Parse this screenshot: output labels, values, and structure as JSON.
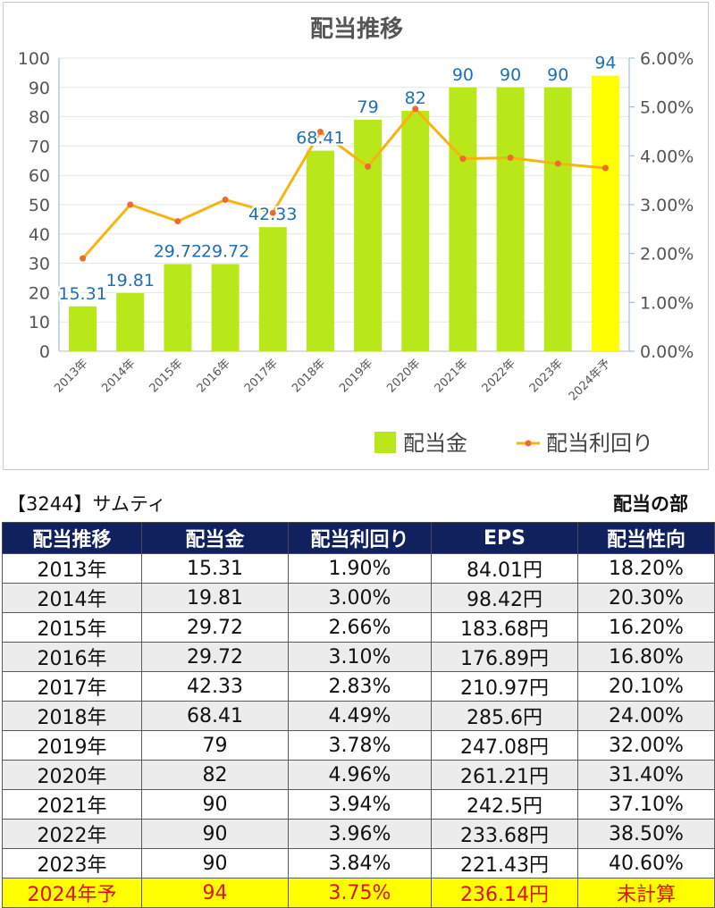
{
  "company_label": "【3244】サムティ",
  "section_label": "配当の部",
  "colors": {
    "bar": "#b8e81a",
    "bar_forecast": "#ffff00",
    "yield_line": "#f7b410",
    "yield_marker": "#ec6b2d",
    "data_label": "#1f6fb5",
    "table_header_bg": "#11215e",
    "forecast_row_bg": "#ffff00",
    "forecast_row_text": "#e01010"
  },
  "chart_data": {
    "type": "bar",
    "title": "配当推移",
    "categories": [
      "2013年",
      "2014年",
      "2015年",
      "2016年",
      "2017年",
      "2018年",
      "2019年",
      "2020年",
      "2021年",
      "2022年",
      "2023年",
      "2024年予"
    ],
    "series": [
      {
        "name": "配当金",
        "type": "bar",
        "axis": "left",
        "values": [
          15.31,
          19.81,
          29.72,
          29.72,
          42.33,
          68.41,
          79,
          82,
          90,
          90,
          90,
          94
        ],
        "labels": [
          "15.31",
          "19.81",
          "29.72",
          "29.72",
          "42.33",
          "68.41",
          "79",
          "82",
          "90",
          "90",
          "90",
          "94"
        ]
      },
      {
        "name": "配当利回り",
        "type": "line",
        "axis": "right",
        "values": [
          0.019,
          0.03,
          0.0266,
          0.031,
          0.0283,
          0.0449,
          0.0378,
          0.0496,
          0.0394,
          0.0396,
          0.0384,
          0.0375
        ]
      }
    ],
    "ylim": [
      0,
      100
    ],
    "yticks": [
      "0",
      "10",
      "20",
      "30",
      "40",
      "50",
      "60",
      "70",
      "80",
      "90",
      "100"
    ],
    "y2lim": [
      0,
      0.06
    ],
    "y2ticks": [
      "0.00%",
      "1.00%",
      "2.00%",
      "3.00%",
      "4.00%",
      "5.00%",
      "6.00%"
    ],
    "legend_position": "bottom-right",
    "grid": true
  },
  "table": {
    "headers": [
      "配当推移",
      "配当金",
      "配当利回り",
      "EPS",
      "配当性向"
    ],
    "rows": [
      [
        "2013年",
        "15.31",
        "1.90%",
        "84.01円",
        "18.20%"
      ],
      [
        "2014年",
        "19.81",
        "3.00%",
        "98.42円",
        "20.30%"
      ],
      [
        "2015年",
        "29.72",
        "2.66%",
        "183.68円",
        "16.20%"
      ],
      [
        "2016年",
        "29.72",
        "3.10%",
        "176.89円",
        "16.80%"
      ],
      [
        "2017年",
        "42.33",
        "2.83%",
        "210.97円",
        "20.10%"
      ],
      [
        "2018年",
        "68.41",
        "4.49%",
        "285.6円",
        "24.00%"
      ],
      [
        "2019年",
        "79",
        "3.78%",
        "247.08円",
        "32.00%"
      ],
      [
        "2020年",
        "82",
        "4.96%",
        "261.21円",
        "31.40%"
      ],
      [
        "2021年",
        "90",
        "3.94%",
        "242.5円",
        "37.10%"
      ],
      [
        "2022年",
        "90",
        "3.96%",
        "233.68円",
        "38.50%"
      ],
      [
        "2023年",
        "90",
        "3.84%",
        "221.43円",
        "40.60%"
      ],
      [
        "2024年予",
        "94",
        "3.75%",
        "236.14円",
        "未計算"
      ]
    ]
  }
}
